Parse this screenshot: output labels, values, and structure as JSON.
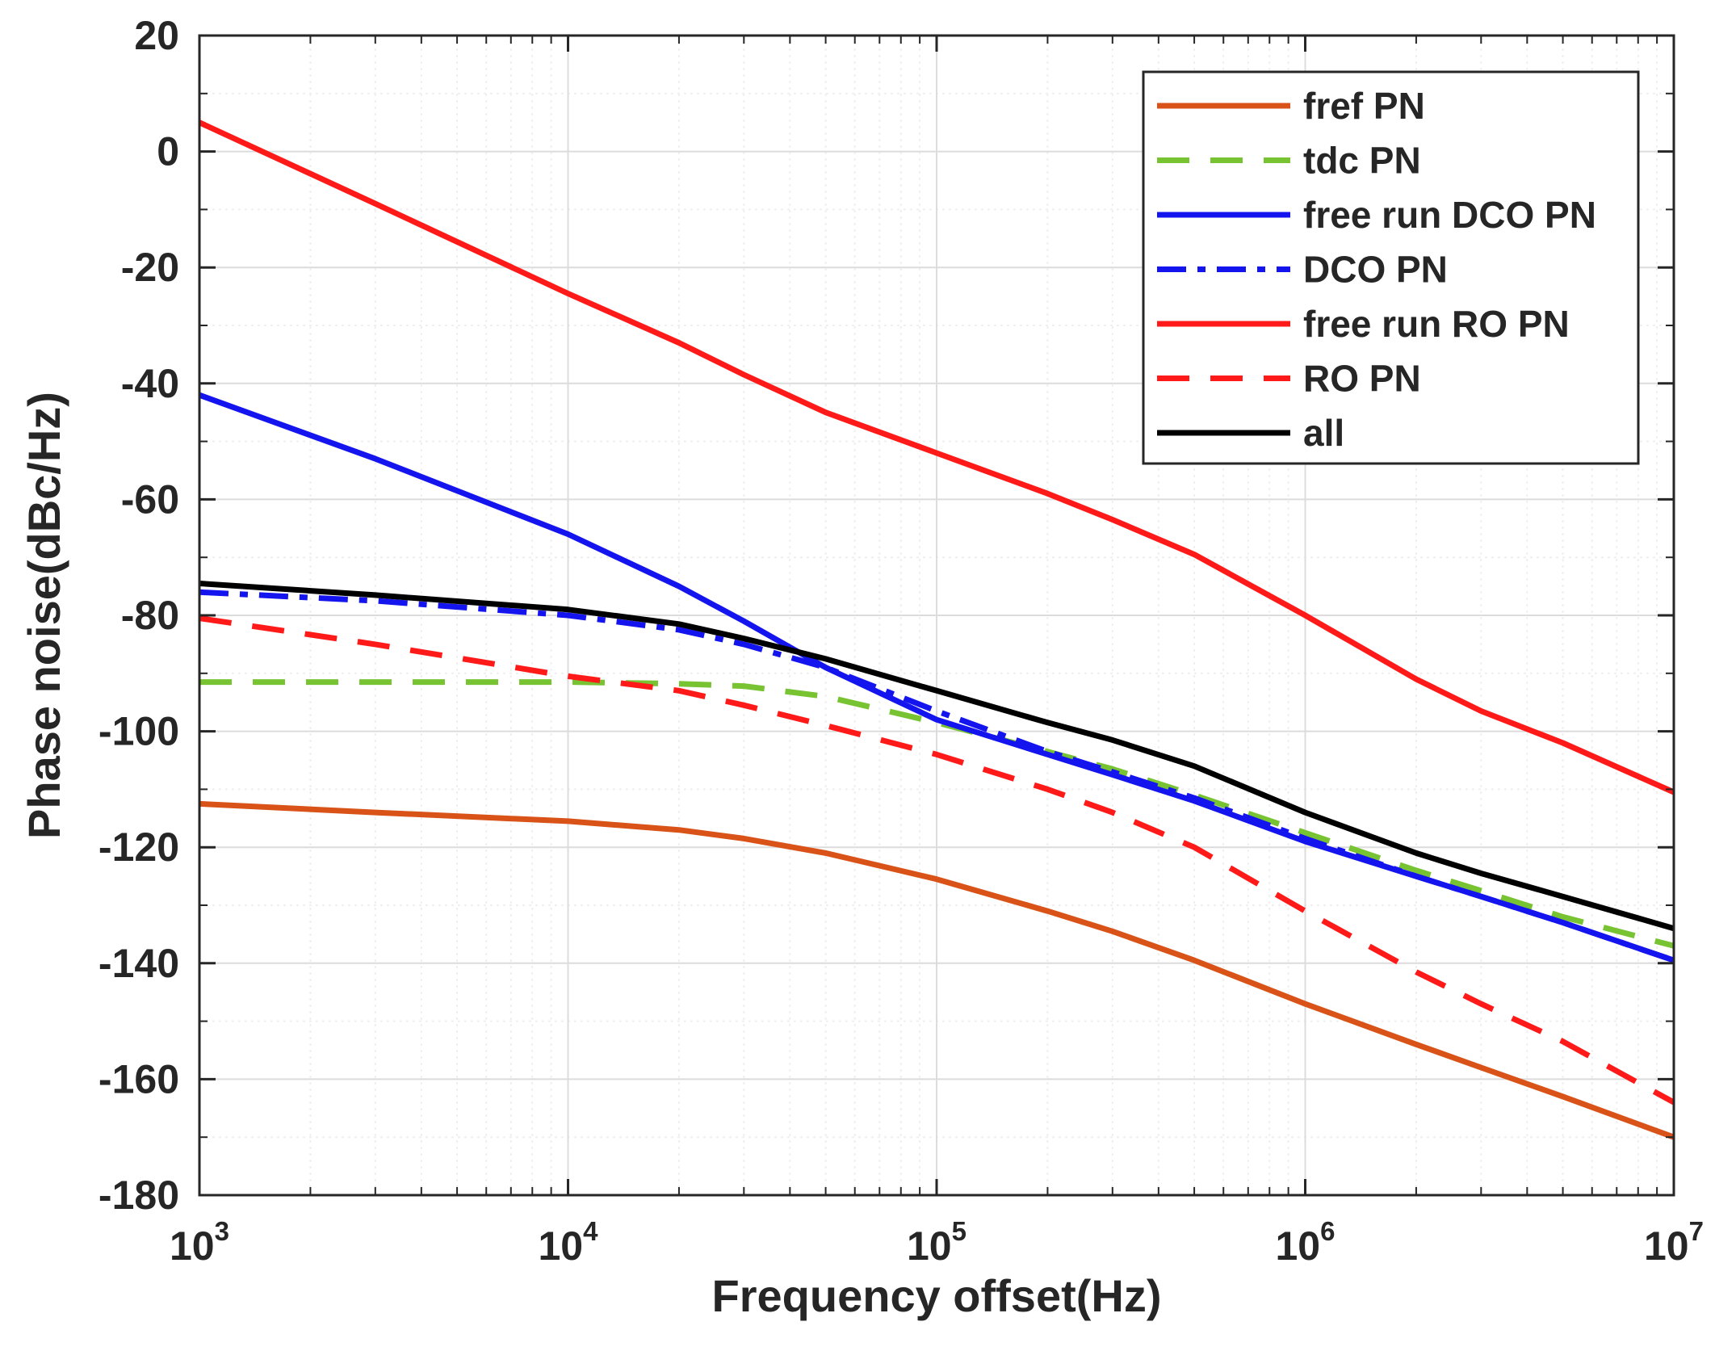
{
  "chart_data": {
    "type": "line",
    "xscale": "log",
    "xlabel": "Frequency offset(Hz)",
    "ylabel": "Phase noise(dBc/Hz)",
    "xlim": [
      1000,
      10000000
    ],
    "ylim": [
      -180,
      20
    ],
    "grid": true,
    "legend_position": "top-right",
    "x_ticks": [
      {
        "base": "10",
        "exp": "3"
      },
      {
        "base": "10",
        "exp": "4"
      },
      {
        "base": "10",
        "exp": "5"
      },
      {
        "base": "10",
        "exp": "6"
      },
      {
        "base": "10",
        "exp": "7"
      }
    ],
    "y_ticks": [
      "20",
      "0",
      "-20",
      "-40",
      "-60",
      "-80",
      "-100",
      "-120",
      "-140",
      "-160",
      "-180"
    ],
    "x": [
      1000,
      3000,
      10000,
      20000,
      30000,
      50000,
      100000,
      200000,
      300000,
      500000,
      1000000,
      2000000,
      3000000,
      5000000,
      10000000
    ],
    "series": [
      {
        "name": "fref PN",
        "color": "#D95319",
        "style": "solid",
        "values": [
          -112.5,
          -114,
          -115.5,
          -117,
          -118.5,
          -121,
          -125.5,
          -131,
          -134.5,
          -139.5,
          -147,
          -154,
          -158,
          -163,
          -170
        ]
      },
      {
        "name": "tdc PN",
        "color": "#77C332",
        "style": "dashed",
        "values": [
          -91.5,
          -91.5,
          -91.5,
          -91.8,
          -92.2,
          -94,
          -98.5,
          -103.5,
          -106.5,
          -111,
          -117.5,
          -124,
          -127.5,
          -132,
          -137
        ]
      },
      {
        "name": "free run DCO PN",
        "color": "#1414EE",
        "style": "solid",
        "values": [
          -42,
          -53,
          -66,
          -75,
          -81,
          -89,
          -98,
          -104,
          -107.5,
          -112,
          -119,
          -125,
          -128.5,
          -133,
          -139.5
        ]
      },
      {
        "name": "DCO PN",
        "color": "#1414EE",
        "style": "dashdot",
        "values": [
          -76,
          -77.5,
          -80,
          -82.5,
          -85,
          -89,
          -96.5,
          -103.5,
          -107,
          -111.5,
          -118.5,
          -125,
          -128.5,
          -133,
          -139.5
        ]
      },
      {
        "name": "free run RO PN",
        "color": "#FF1A1A",
        "style": "solid",
        "values": [
          5,
          -9,
          -24.5,
          -33,
          -38.5,
          -45,
          -52,
          -59,
          -63.5,
          -69.5,
          -80,
          -91,
          -96.5,
          -102,
          -110.5
        ]
      },
      {
        "name": "RO PN",
        "color": "#FF1A1A",
        "style": "dashed",
        "values": [
          -80.5,
          -85,
          -90.5,
          -93,
          -95.5,
          -99,
          -104,
          -110,
          -114,
          -120,
          -131,
          -141.5,
          -147,
          -153.5,
          -164
        ]
      },
      {
        "name": "all",
        "color": "#000000",
        "style": "solid",
        "values": [
          -74.5,
          -76.5,
          -79,
          -81.5,
          -84,
          -87.5,
          -93,
          -98.5,
          -101.5,
          -106,
          -114,
          -121,
          -124.5,
          -128.5,
          -134
        ]
      }
    ]
  }
}
